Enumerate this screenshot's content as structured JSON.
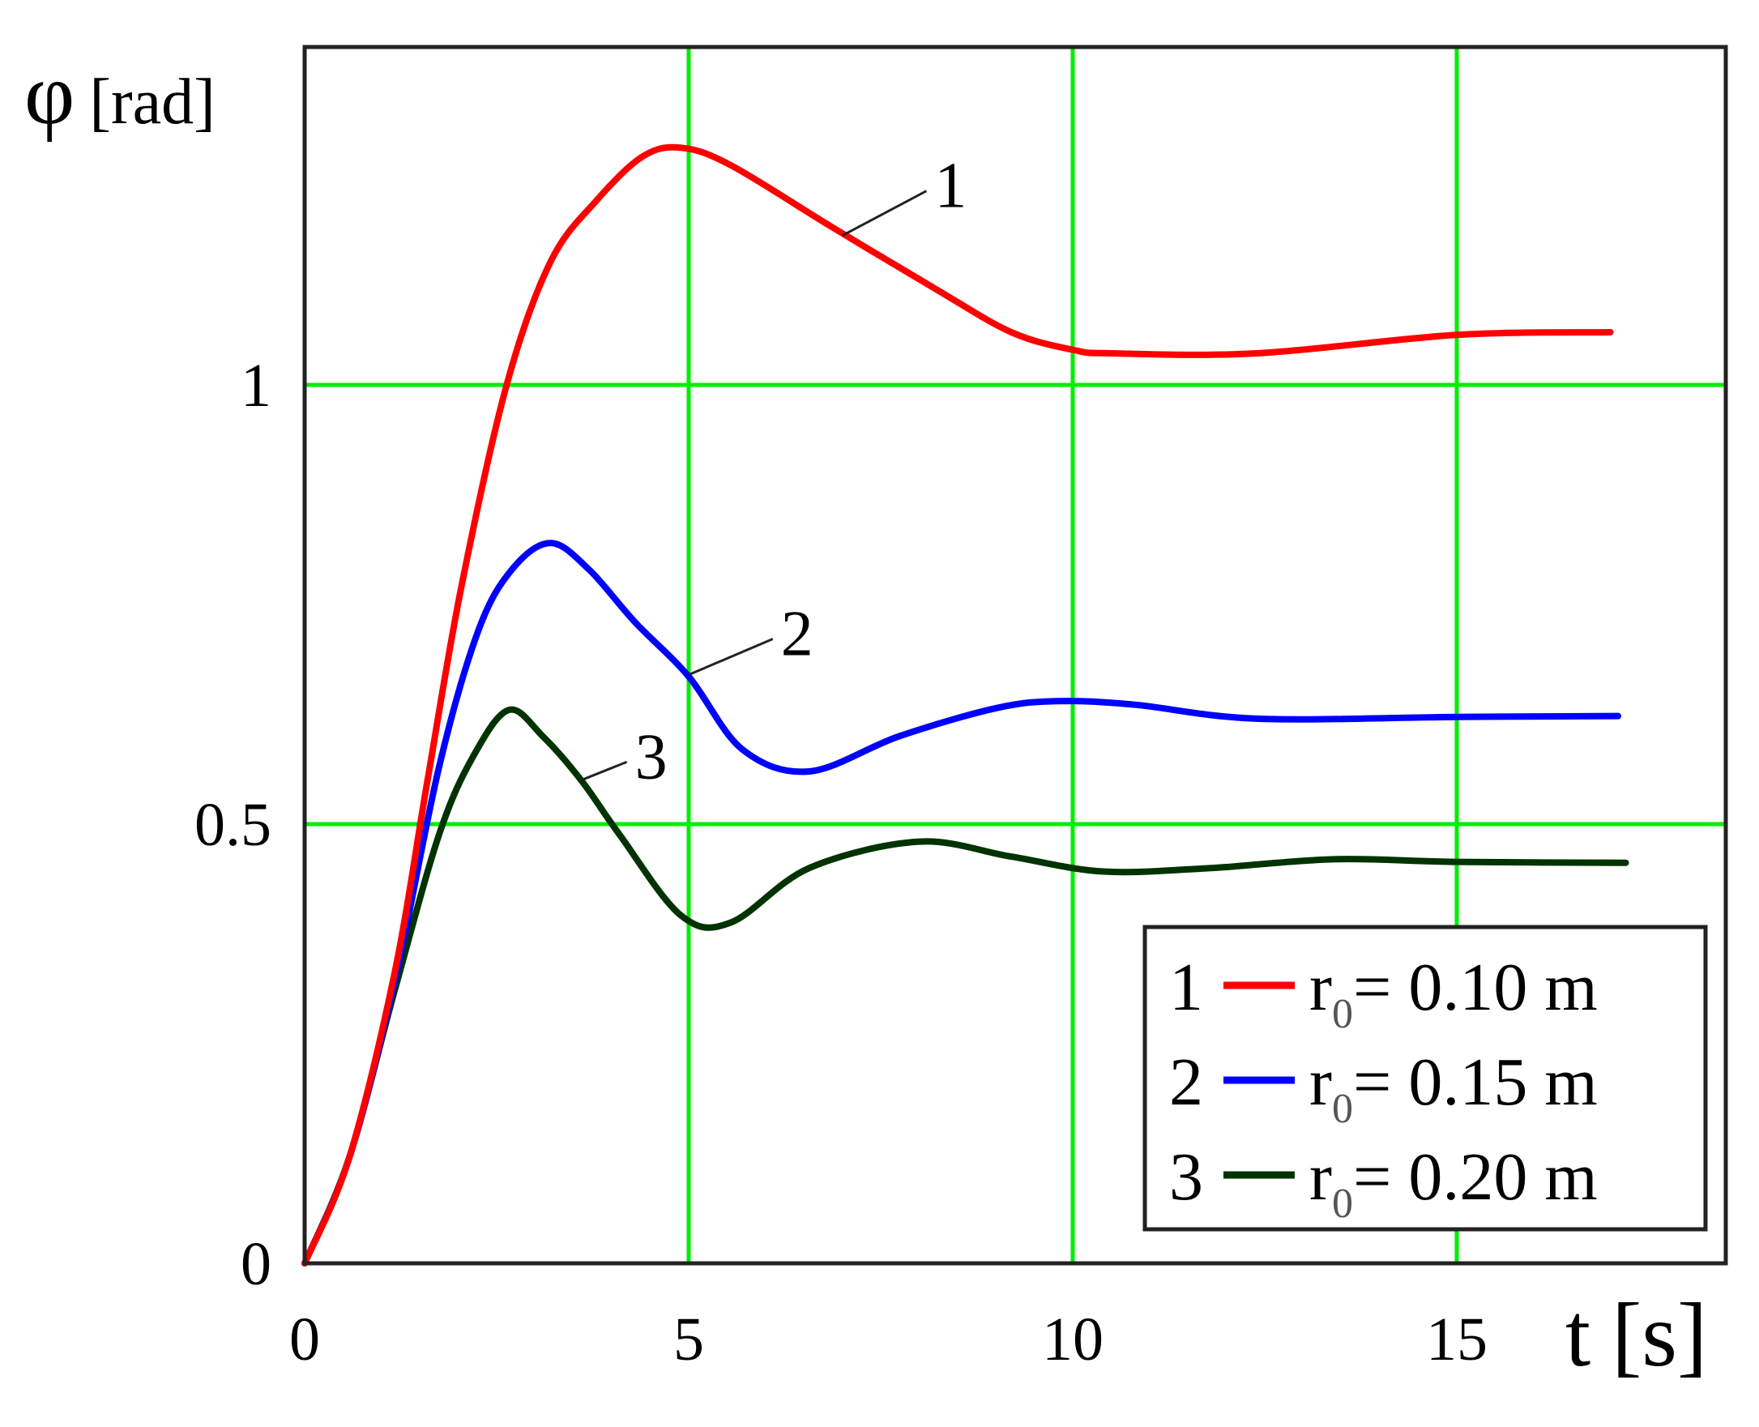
{
  "chart_data": {
    "type": "line",
    "title": "",
    "xlabel": "t [s]",
    "ylabel": "φ [rad]",
    "xlabel_parts": {
      "symbol": "t",
      "unit": "[s]"
    },
    "ylabel_parts": {
      "symbol": "φ",
      "unit": "[rad]"
    },
    "xlim": [
      0,
      18.4
    ],
    "ylim": [
      0,
      1.39
    ],
    "x_ticks": [
      0,
      5,
      10,
      15
    ],
    "x_tick_labels": [
      "0",
      "5",
      "10",
      "15"
    ],
    "y_ticks": [
      0,
      0.5,
      1
    ],
    "y_tick_labels": [
      "0",
      "0.5",
      "1"
    ],
    "grid": true,
    "grid_color": "#00ee00",
    "legend_position": "lower right",
    "series": [
      {
        "id": "1",
        "name": "r0 = 0.10 m",
        "legend_num": "1",
        "legend_label": "= 0.10 m",
        "color": "#ff0000",
        "callout": {
          "label": "1",
          "at": [
            7.0,
            1.17
          ],
          "text_at": [
            8.2,
            1.23
          ]
        },
        "x": [
          0,
          0.58,
          1.17,
          1.6,
          2.04,
          2.63,
          3.2,
          3.8,
          4.4,
          4.9,
          5.55,
          6.86,
          8.2,
          9.2,
          10.0,
          10.5,
          12.4,
          15.0,
          17.0
        ],
        "y": [
          0,
          0.12,
          0.33,
          0.55,
          0.77,
          1.0,
          1.14,
          1.21,
          1.26,
          1.27,
          1.25,
          1.18,
          1.11,
          1.06,
          1.04,
          1.036,
          1.036,
          1.057,
          1.06
        ]
      },
      {
        "id": "2",
        "name": "r0 = 0.15 m",
        "legend_num": "2",
        "legend_label": "= 0.15 m",
        "color": "#0000ff",
        "callout": {
          "label": "2",
          "at": [
            5.0,
            0.67
          ],
          "text_at": [
            6.2,
            0.72
          ]
        },
        "x": [
          0,
          0.58,
          1.17,
          1.75,
          2.26,
          2.7,
          3.2,
          3.7,
          4.3,
          5.0,
          5.7,
          6.57,
          7.74,
          9.0,
          9.8,
          10.8,
          12.4,
          15.0,
          17.1
        ],
        "y": [
          0,
          0.12,
          0.32,
          0.565,
          0.72,
          0.79,
          0.82,
          0.79,
          0.73,
          0.668,
          0.585,
          0.56,
          0.6,
          0.632,
          0.64,
          0.636,
          0.62,
          0.622,
          0.623
        ]
      },
      {
        "id": "3",
        "name": "r0 = 0.20 m",
        "legend_num": "3",
        "legend_label": "= 0.20 m",
        "color": "#003300",
        "callout": {
          "label": "3",
          "at": [
            3.6,
            0.55
          ],
          "text_at": [
            4.3,
            0.58
          ]
        },
        "x": [
          0,
          0.58,
          1.17,
          1.75,
          2.2,
          2.66,
          3.1,
          3.6,
          4.1,
          4.9,
          5.55,
          6.57,
          8.0,
          9.2,
          10.4,
          11.8,
          13.4,
          15.0,
          17.2
        ],
        "y": [
          0,
          0.12,
          0.31,
          0.488,
          0.578,
          0.63,
          0.6,
          0.55,
          0.488,
          0.396,
          0.388,
          0.45,
          0.48,
          0.463,
          0.446,
          0.45,
          0.46,
          0.457,
          0.456
        ]
      }
    ]
  },
  "legend": {
    "subscript": "0",
    "symbol": "r"
  }
}
